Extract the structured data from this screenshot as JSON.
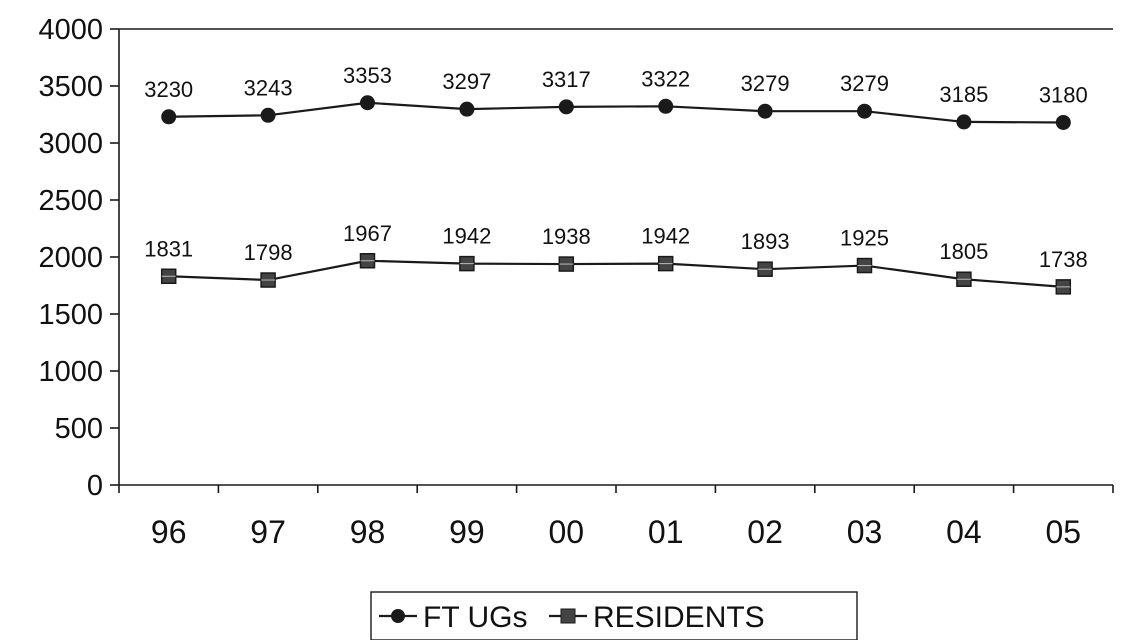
{
  "chart_data": {
    "type": "line",
    "title": "",
    "xlabel": "",
    "ylabel": "",
    "categories": [
      "96",
      "97",
      "98",
      "99",
      "00",
      "01",
      "02",
      "03",
      "04",
      "05"
    ],
    "ylim": [
      0,
      4000
    ],
    "yticks": [
      "0",
      "500",
      "1000",
      "1500",
      "2000",
      "2500",
      "3000",
      "3500",
      "4000"
    ],
    "grid": false,
    "legend_position": "bottom",
    "series": [
      {
        "name": "FT UGs",
        "marker": "circle",
        "color": "#1a1a1a",
        "values": [
          3230,
          3243,
          3353,
          3297,
          3317,
          3322,
          3279,
          3279,
          3185,
          3180
        ],
        "labels": [
          "3230",
          "3243",
          "3353",
          "3297",
          "3317",
          "3322",
          "3279",
          "3279",
          "3185",
          "3180"
        ]
      },
      {
        "name": "RESIDENTS",
        "marker": "square",
        "color": "#1a1a1a",
        "values": [
          1831,
          1798,
          1967,
          1942,
          1938,
          1942,
          1893,
          1925,
          1805,
          1738
        ],
        "labels": [
          "1831",
          "1798",
          "1967",
          "1942",
          "1938",
          "1942",
          "1893",
          "1925",
          "1805",
          "1738"
        ]
      }
    ]
  }
}
